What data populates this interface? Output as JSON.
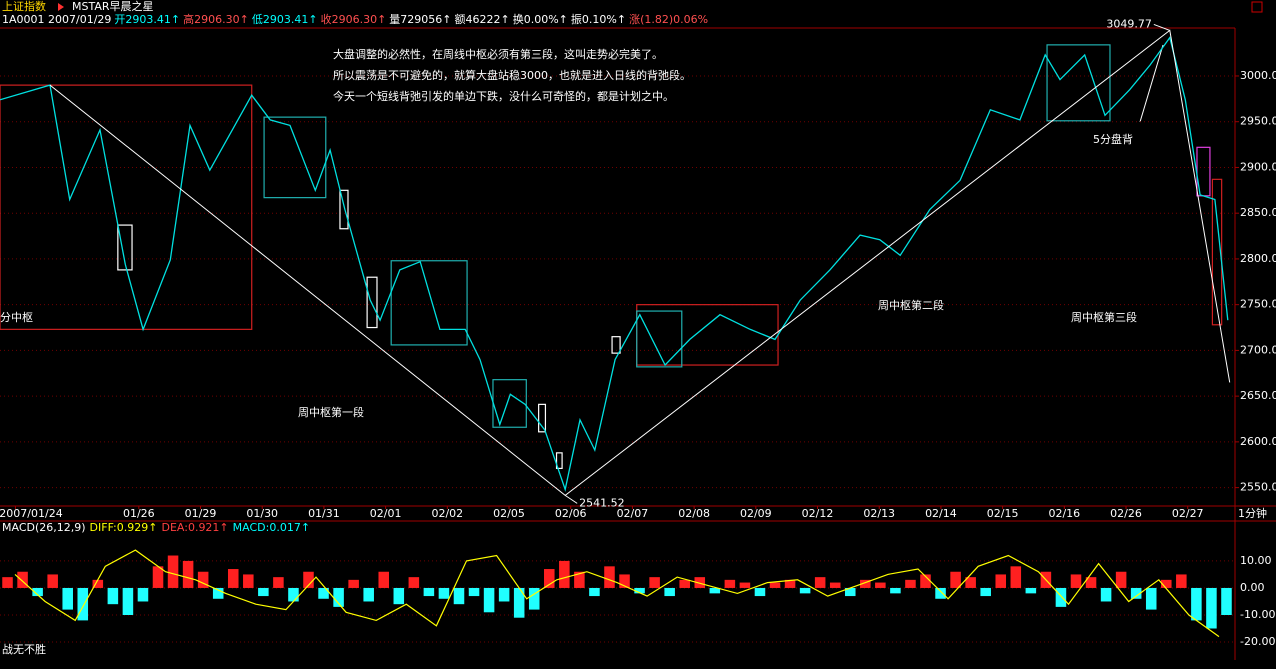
{
  "header": {
    "index_name": "上证指数",
    "template": "MSTAR早晨之星",
    "quote": [
      {
        "text": "1A0001 2007/01/29",
        "color": "#ffffff"
      },
      {
        "text": "开2903.41↑",
        "color": "#00ffff"
      },
      {
        "text": "高2906.30↑",
        "color": "#ff5050"
      },
      {
        "text": "低2903.41↑",
        "color": "#00ffff"
      },
      {
        "text": "收2906.30↑",
        "color": "#ff5050"
      },
      {
        "text": "量729056↑",
        "color": "#ffffff"
      },
      {
        "text": "额46222↑",
        "color": "#ffffff"
      },
      {
        "text": "换0.00%↑",
        "color": "#ffffff"
      },
      {
        "text": "振0.10%↑",
        "color": "#ffffff"
      },
      {
        "text": "涨(1.82)0.06%",
        "color": "#ff5050"
      }
    ]
  },
  "footer": "战无不胜",
  "chart_data": [
    {
      "type": "line",
      "x_unit": "1分钟",
      "categories": [
        "2007/01/24",
        null,
        "01/26",
        "01/29",
        "01/30",
        "01/31",
        "02/01",
        "02/02",
        "02/05",
        "02/06",
        "02/07",
        "02/08",
        "02/09",
        "02/12",
        "02/13",
        "02/14",
        "02/15",
        "02/16",
        "02/26",
        "02/27"
      ],
      "xlim": [
        -0.25,
        19.75
      ],
      "ylim": [
        2531,
        3059
      ],
      "yticks": [
        {
          "value": 2550,
          "label": "2550.0"
        },
        {
          "value": 2600,
          "label": "2600.0"
        },
        {
          "value": 2650,
          "label": "2650.0"
        },
        {
          "value": 2700,
          "label": "2700.0"
        },
        {
          "value": 2750,
          "label": "2750.0"
        },
        {
          "value": 2800,
          "label": "2800.0"
        },
        {
          "value": 2850,
          "label": "2850.0"
        },
        {
          "value": 2900,
          "label": "2900.0"
        },
        {
          "value": 2950,
          "label": "2950.0"
        },
        {
          "value": 3000,
          "label": "3000.0"
        }
      ],
      "grid": true,
      "series": [
        {
          "color": "#00e0e0",
          "x": [
            -0.25,
            0.56,
            0.88,
            1.37,
            1.78,
            2.07,
            2.51,
            2.83,
            3.15,
            3.83,
            4.13,
            4.45,
            4.86,
            5.1,
            5.34,
            5.75,
            5.91,
            6.23,
            6.56,
            6.88,
            7.29,
            7.53,
            7.85,
            8.02,
            8.26,
            8.58,
            8.91,
            9.15,
            9.39,
            9.72,
            10.12,
            10.53,
            10.93,
            11.42,
            11.91,
            12.31,
            12.72,
            13.2,
            13.69,
            14.01,
            14.34,
            14.82,
            15.31,
            15.8,
            16.28,
            16.69,
            16.93,
            17.33,
            17.66,
            18.06,
            18.39,
            18.71,
            18.96,
            19.2,
            19.44,
            19.65
          ],
          "values": [
            2974,
            2990,
            2865,
            2941,
            2794,
            2723,
            2799,
            2946,
            2897,
            2979,
            2952,
            2946,
            2875,
            2919,
            2854,
            2755,
            2733,
            2788,
            2797,
            2723,
            2723,
            2690,
            2619,
            2652,
            2641,
            2613,
            2548,
            2624,
            2591,
            2690,
            2739,
            2684,
            2712,
            2739,
            2723,
            2712,
            2755,
            2788,
            2826,
            2821,
            2804,
            2854,
            2886,
            2963,
            2952,
            3023,
            2996,
            3023,
            2957,
            2985,
            3012,
            3042,
            2974,
            2870,
            2865,
            2733
          ]
        }
      ],
      "trend": {
        "color": "#ffffff",
        "x": [
          0.56,
          8.91,
          18.71,
          19.68
        ],
        "values": [
          2990,
          2541.52,
          3049.77,
          2665
        ]
      },
      "zones": [
        {
          "color": "#d02020",
          "x": [
            -0.25,
            3.83
          ],
          "y": [
            2990,
            2723
          ]
        },
        {
          "color": "#d02020",
          "x": [
            10.07,
            12.36
          ],
          "y": [
            2750,
            2684
          ]
        },
        {
          "color": "#20b0b0",
          "x": [
            4.03,
            5.03
          ],
          "y": [
            2955,
            2867
          ]
        },
        {
          "color": "#20b0b0",
          "x": [
            6.09,
            7.32
          ],
          "y": [
            2798,
            2706
          ]
        },
        {
          "color": "#20b0b0",
          "x": [
            7.74,
            8.28
          ],
          "y": [
            2668,
            2616
          ]
        },
        {
          "color": "#20b0b0",
          "x": [
            10.07,
            10.8
          ],
          "y": [
            2743,
            2682
          ]
        },
        {
          "color": "#20b0b0",
          "x": [
            16.72,
            17.74
          ],
          "y": [
            3034,
            2951
          ]
        },
        {
          "color": "#e040e0",
          "x": [
            19.15,
            19.36
          ],
          "y": [
            2922,
            2869
          ]
        },
        {
          "color": "#d02020",
          "x": [
            19.4,
            19.55
          ],
          "y": [
            2887,
            2728
          ]
        },
        {
          "color": "#ffffff",
          "x": [
            1.66,
            1.89
          ],
          "y": [
            2837,
            2788
          ]
        },
        {
          "color": "#ffffff",
          "x": [
            5.26,
            5.39
          ],
          "y": [
            2875,
            2833
          ]
        },
        {
          "color": "#ffffff",
          "x": [
            5.7,
            5.86
          ],
          "y": [
            2780,
            2725
          ]
        },
        {
          "color": "#ffffff",
          "x": [
            8.48,
            8.59
          ],
          "y": [
            2641,
            2611
          ]
        },
        {
          "color": "#ffffff",
          "x": [
            8.77,
            8.86
          ],
          "y": [
            2588,
            2571
          ]
        },
        {
          "color": "#ffffff",
          "x": [
            9.67,
            9.8
          ],
          "y": [
            2715,
            2697
          ]
        }
      ],
      "annotations": [
        "大盘调整的必然性，在周线中枢必须有第三段，这叫走势必完美了。",
        "所以震荡是不可避免的，就算大盘站稳3000，也就是进入日线的背弛段。",
        "今天一个短线背弛引发的单边下跌，没什么可奇怪的，都是计划之中。",
        "分中枢",
        "周中枢第一段",
        "周中枢第二段",
        "周中枢第三段",
        "5分盘背"
      ]
    },
    {
      "type": "bar",
      "title": "MACD(26,12,9)",
      "legend": [
        {
          "text": "DIFF:0.929↑",
          "color": "#ffff00"
        },
        {
          "text": "DEA:0.921↑",
          "color": "#ff4040"
        },
        {
          "text": "MACD:0.017↑",
          "color": "#00ffff"
        }
      ],
      "ylim": [
        -24.8,
        24.4
      ],
      "yticks": [
        {
          "value": 10,
          "label": "10.00"
        },
        {
          "value": 0,
          "label": "0.00"
        },
        {
          "value": -10,
          "label": "-10.00"
        },
        {
          "value": -20,
          "label": "-20.00"
        }
      ],
      "color_up": "#ff2020",
      "color_down": "#20ffff",
      "diff_color": "#ffff00",
      "values": [
        4,
        6,
        -3,
        5,
        -8,
        -12,
        3,
        -6,
        -10,
        -5,
        8,
        12,
        10,
        6,
        -4,
        7,
        5,
        -3,
        4,
        -5,
        6,
        -4,
        -7,
        3,
        -5,
        6,
        -6,
        4,
        -3,
        -4,
        -6,
        -3,
        -9,
        -5,
        -11,
        -8,
        7,
        10,
        6,
        -3,
        8,
        5,
        -2,
        4,
        -3,
        3,
        4,
        -2,
        3,
        2,
        -3,
        2,
        3,
        -2,
        4,
        2,
        -3,
        3,
        2,
        -2,
        3,
        5,
        -4,
        6,
        4,
        -3,
        5,
        8,
        -2,
        6,
        -7,
        5,
        4,
        -5,
        6,
        -4,
        -8,
        3,
        5,
        -12,
        -15,
        -10
      ],
      "diff_values": [
        5,
        -5,
        -12,
        8,
        14,
        6,
        3,
        -2,
        -6,
        -8,
        4,
        -9,
        -12,
        -6,
        -14,
        10,
        12,
        -4,
        3,
        6,
        2,
        -3,
        4,
        1,
        -2,
        2,
        3,
        -3,
        1,
        5,
        7,
        -4,
        8,
        12,
        6,
        -6,
        9,
        -5,
        3,
        -10,
        -18
      ]
    }
  ]
}
